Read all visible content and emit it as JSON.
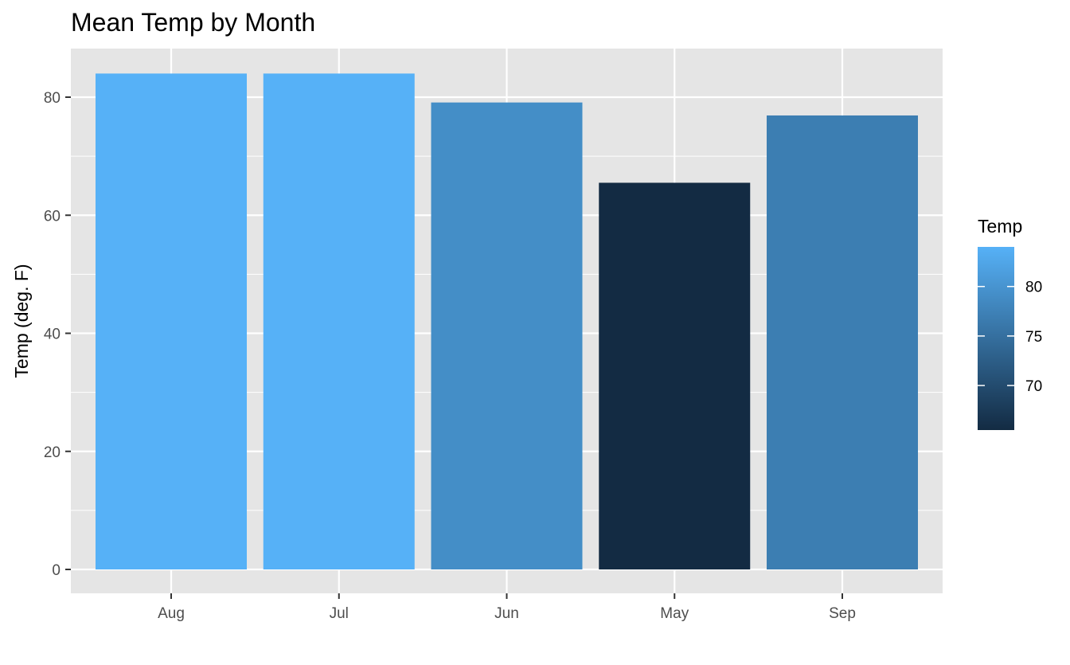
{
  "chart_data": {
    "type": "bar",
    "title": "Mean Temp by Month",
    "xlabel": "",
    "ylabel": "Temp (deg. F)",
    "categories": [
      "Aug",
      "Jul",
      "Jun",
      "May",
      "Sep"
    ],
    "values": [
      84,
      84,
      79.1,
      65.5,
      76.9
    ],
    "ylim": [
      0,
      88
    ],
    "yticks": [
      0,
      20,
      40,
      60,
      80
    ],
    "grid": true,
    "panel_background": "#e5e5e5",
    "grid_color": "#ffffff",
    "fill_scale": {
      "title": "Temp",
      "low": 65.5,
      "high": 84,
      "low_color": "#132b43",
      "high_color": "#56b1f7",
      "breaks": [
        70,
        75,
        80
      ]
    },
    "legend_placement": "right"
  }
}
